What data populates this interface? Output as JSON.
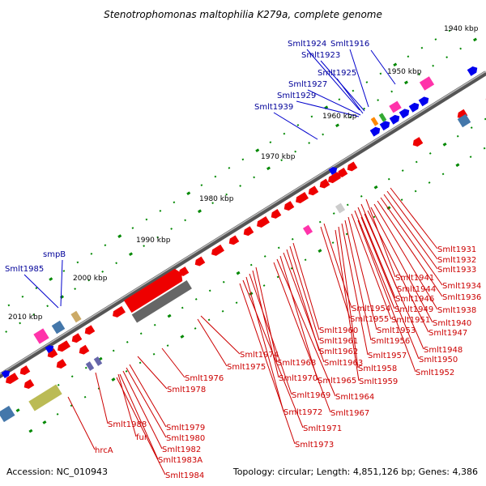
{
  "title": "Stenotrophomonas maltophilia K279a, complete genome",
  "footer": {
    "accession": "Accession: NC_010943",
    "topology": "Topology: circular; Length: 4,851,126 bp; Genes: 4,386"
  },
  "colors": {
    "forward_gene": "#0000ee",
    "reverse_gene": "#ee0000",
    "backbone": "#666666",
    "tick": "#008800",
    "red_label": "#cc0000",
    "blue_label": "#000099"
  },
  "kbp_markers": [
    "1940 kbp",
    "1950 kbp",
    "1960 kbp",
    "1970 kbp",
    "1980 kbp",
    "1990 kbp",
    "2000 kbp",
    "2010 kbp"
  ],
  "blue_labels": [
    "Smlt1924",
    "Smlt1916",
    "Smlt1923",
    "Smlt1925",
    "Smlt1927",
    "Smlt1929",
    "Smlt1939",
    "smpB",
    "Smlt1985"
  ],
  "red_labels": [
    "Smlt1931",
    "Smlt1932",
    "Smlt1933",
    "Smlt1941",
    "Smlt1934",
    "Smlt1944",
    "Smlt1936",
    "Smlt1946",
    "Smlt1938",
    "Smlt1954",
    "Smlt1949",
    "Smlt1955",
    "Smlt1951",
    "Smlt1940",
    "Smlt1953",
    "Smlt1947",
    "Smlt1960",
    "Smlt1961",
    "Smlt1956",
    "Smlt1962",
    "Smlt1948",
    "Smlt1957",
    "Smlt1950",
    "Smlt1974",
    "Smlt1963",
    "Smlt1958",
    "Smlt1952",
    "Smlt1975",
    "Smlt1968",
    "Smlt1976",
    "Smlt1970",
    "Smlt1965",
    "Smlt1959",
    "Smlt1978",
    "Smlt1969",
    "Smlt1964",
    "Smlt1972",
    "Smlt1967",
    "Smlt1988",
    "Smlt1979",
    "Smlt1971",
    "Smlt1980",
    "fur",
    "Smlt1973",
    "Smlt1982",
    "hrcA",
    "Smlt1983A",
    "Smlt1984"
  ]
}
